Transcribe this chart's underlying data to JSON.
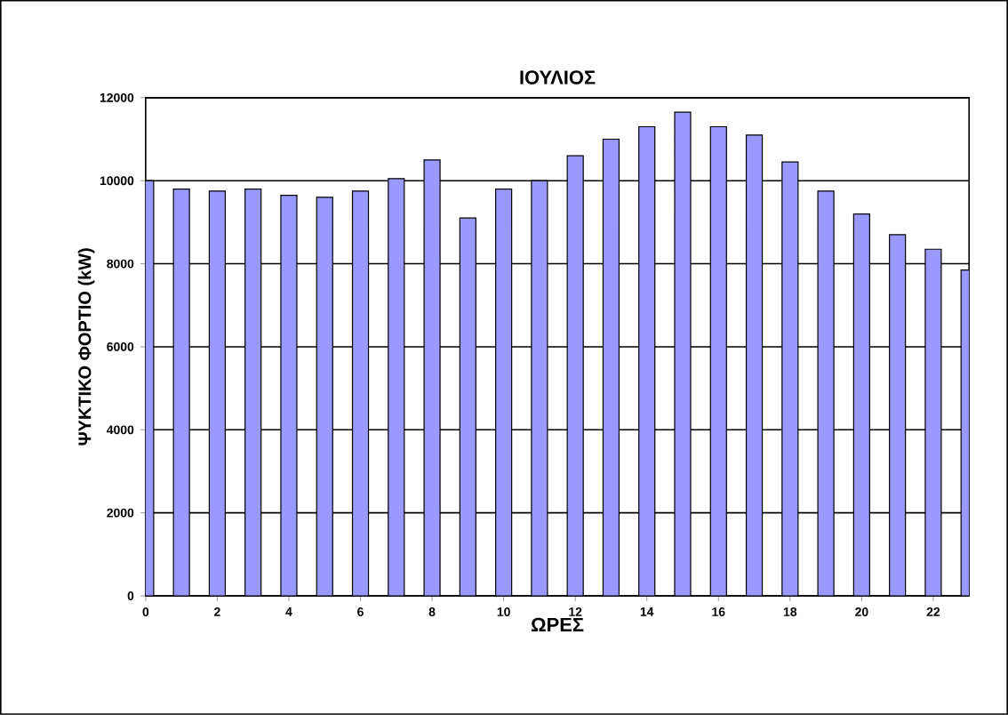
{
  "chart_data": {
    "type": "bar",
    "title": "ΙΟΥΛΙΟΣ",
    "xlabel": "ΩΡΕΣ",
    "ylabel": "ΨΥΚΤΙΚΟ ΦΟΡΤΙΟ (kW)",
    "x": [
      0,
      1,
      2,
      3,
      4,
      5,
      6,
      7,
      8,
      9,
      10,
      11,
      12,
      13,
      14,
      15,
      16,
      17,
      18,
      19,
      20,
      21,
      22,
      23
    ],
    "values": [
      10000,
      9800,
      9750,
      9800,
      9650,
      9600,
      9750,
      10050,
      10500,
      9100,
      9800,
      10000,
      10600,
      11000,
      11300,
      11650,
      11300,
      11100,
      10450,
      9750,
      9200,
      8700,
      8350,
      7850
    ],
    "color": "#9999ff",
    "xlim": [
      0,
      23
    ],
    "xticks": [
      0,
      2,
      4,
      6,
      8,
      10,
      12,
      14,
      16,
      18,
      20,
      22
    ],
    "ylim": [
      0,
      12000
    ],
    "yticks": [
      0,
      2000,
      4000,
      6000,
      8000,
      10000,
      12000
    ],
    "grid": "y"
  }
}
